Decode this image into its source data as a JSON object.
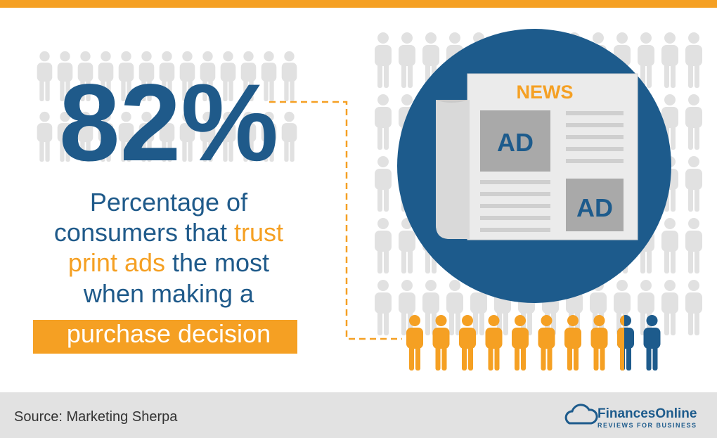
{
  "stat": {
    "label": "82%",
    "color": "#1f5a8a"
  },
  "description": {
    "lines": [
      [
        {
          "text": "Percentage of",
          "color": "#1f5a8a"
        }
      ],
      [
        {
          "text": "consumers that ",
          "color": "#1f5a8a"
        },
        {
          "text": "trust",
          "color": "#f5a023"
        }
      ],
      [
        {
          "text": "print ads",
          "color": "#f5a023"
        },
        {
          "text": " the most",
          "color": "#1f5a8a"
        }
      ],
      [
        {
          "text": "when making a",
          "color": "#1f5a8a"
        }
      ],
      [
        {
          "text": "purchase decision",
          "color": "#ffffff"
        }
      ]
    ]
  },
  "newspaper": {
    "heading": "NEWS",
    "ad_labels": [
      "AD",
      "AD"
    ]
  },
  "footer": {
    "source": "Source: Marketing Sherpa",
    "logo": {
      "name": "FinancesOnline",
      "tagline": "REVIEWS FOR BUSINESS"
    }
  }
}
